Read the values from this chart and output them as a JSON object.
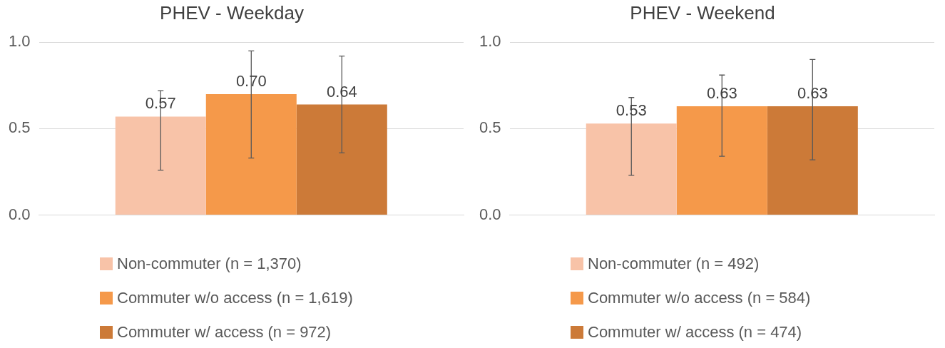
{
  "chart_data": [
    {
      "type": "bar",
      "title": "PHEV - Weekday",
      "categories": [
        null
      ],
      "ylim": [
        0,
        1
      ],
      "yticks": [
        {
          "value": 0,
          "label": "0.0"
        },
        {
          "value": 0.5,
          "label": "0.5"
        },
        {
          "value": 1,
          "label": "1.0"
        }
      ],
      "grid": "y",
      "legend": "bottom",
      "series": [
        {
          "name": "Non-commuter (n = 1,370)",
          "color": "#f8c3a8",
          "values": [
            0.57
          ],
          "value_labels": [
            "0.57"
          ],
          "errors": [
            [
              0.26,
              0.72
            ]
          ]
        },
        {
          "name": "Commuter w/o access (n = 1,619)",
          "color": "#f5994a",
          "values": [
            0.7
          ],
          "value_labels": [
            "0.70"
          ],
          "errors": [
            [
              0.33,
              0.95
            ]
          ]
        },
        {
          "name": "Commuter w/ access (n = 972)",
          "color": "#cc7a38",
          "values": [
            0.64
          ],
          "value_labels": [
            "0.64"
          ],
          "errors": [
            [
              0.36,
              0.92
            ]
          ]
        }
      ]
    },
    {
      "type": "bar",
      "title": "PHEV - Weekend",
      "categories": [
        null
      ],
      "ylim": [
        0,
        1
      ],
      "yticks": [
        {
          "value": 0,
          "label": "0.0"
        },
        {
          "value": 0.5,
          "label": "0.5"
        },
        {
          "value": 1,
          "label": "1.0"
        }
      ],
      "grid": "y",
      "legend": "bottom",
      "series": [
        {
          "name": "Non-commuter (n = 492)",
          "color": "#f8c3a8",
          "values": [
            0.53
          ],
          "value_labels": [
            "0.53"
          ],
          "errors": [
            [
              0.23,
              0.68
            ]
          ]
        },
        {
          "name": "Commuter w/o access (n = 584)",
          "color": "#f5994a",
          "values": [
            0.63
          ],
          "value_labels": [
            "0.63"
          ],
          "errors": [
            [
              0.34,
              0.81
            ]
          ]
        },
        {
          "name": "Commuter w/ access (n = 474)",
          "color": "#cc7a38",
          "values": [
            0.63
          ],
          "value_labels": [
            "0.63"
          ],
          "errors": [
            [
              0.32,
              0.9
            ]
          ]
        }
      ]
    }
  ]
}
